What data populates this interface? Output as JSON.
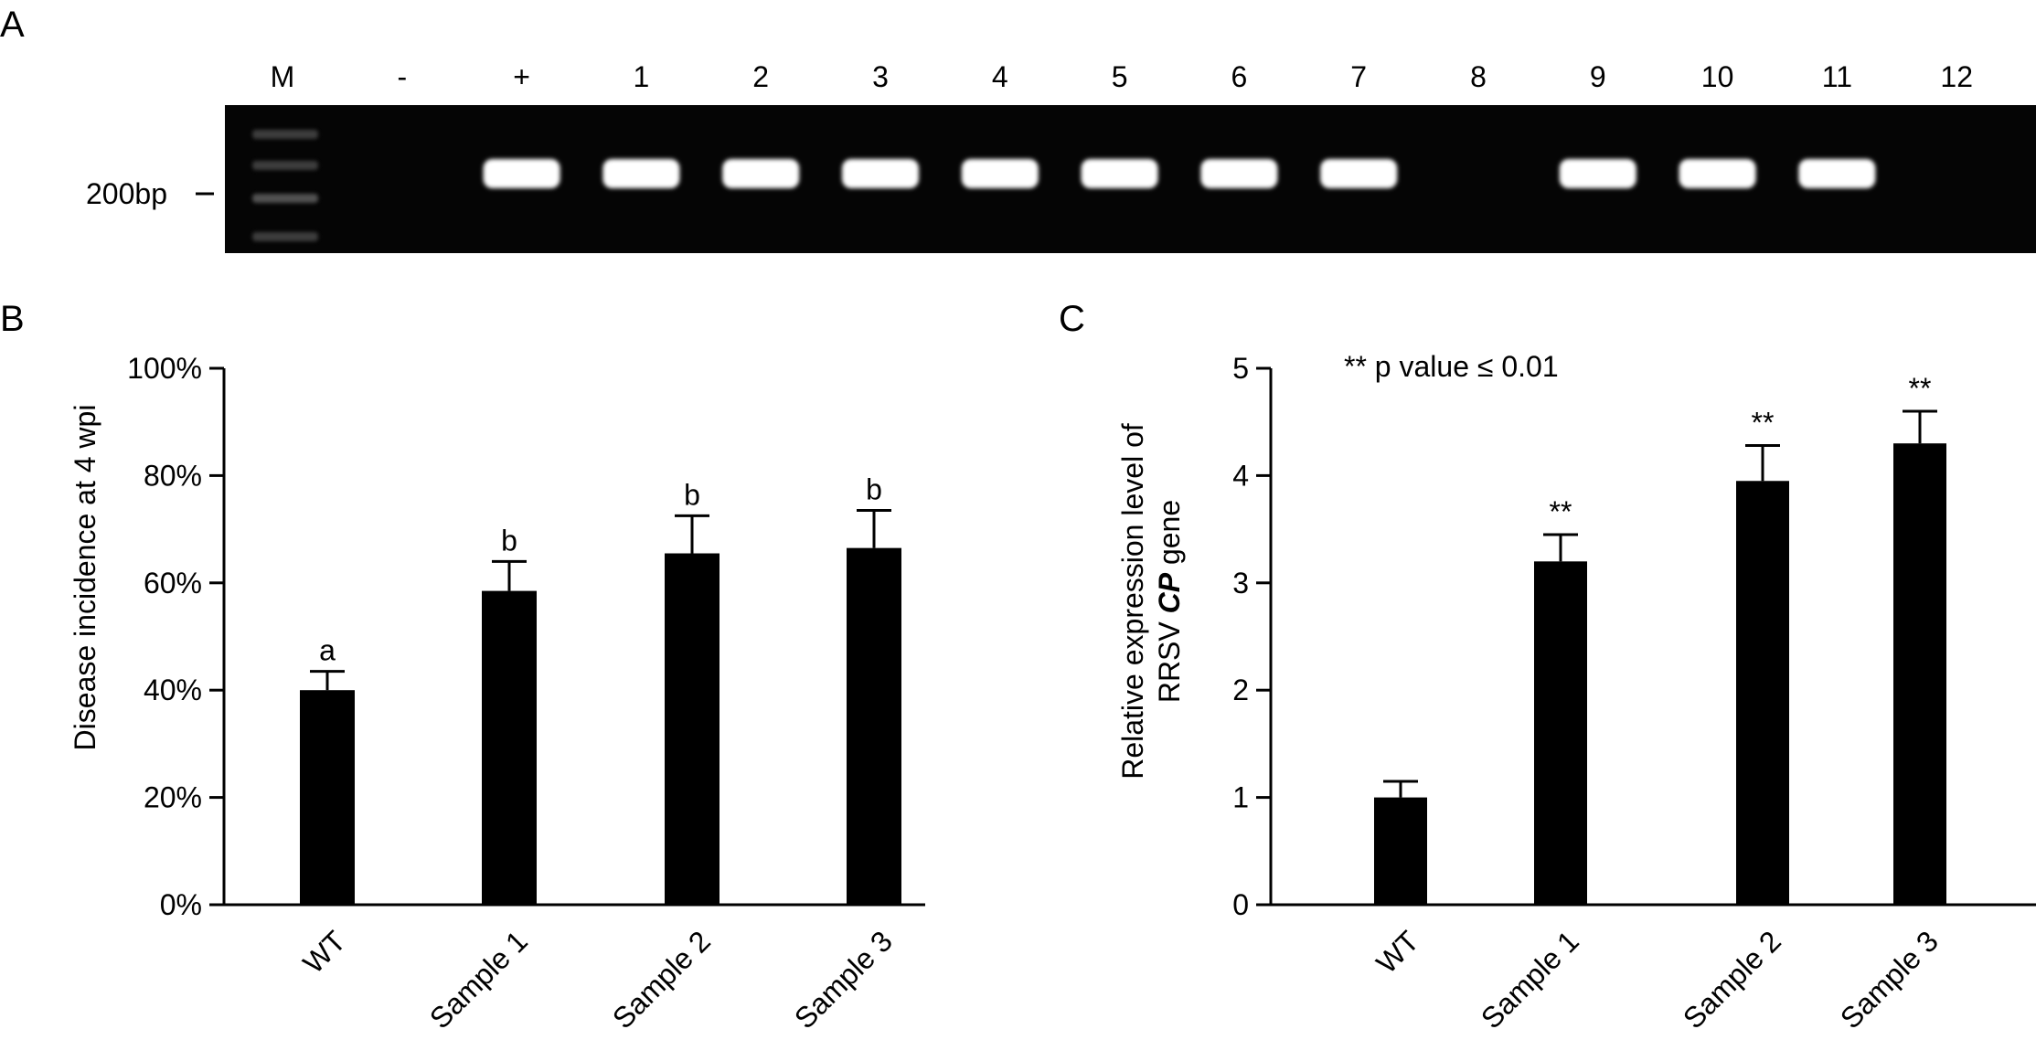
{
  "panels": {
    "a": {
      "letter": "A",
      "lane_labels": [
        "M",
        "-",
        "+",
        "1",
        "2",
        "3",
        "4",
        "5",
        "6",
        "7",
        "8",
        "9",
        "10",
        "11",
        "12"
      ],
      "band_present": [
        false,
        false,
        true,
        true,
        true,
        true,
        true,
        true,
        true,
        true,
        false,
        true,
        true,
        true,
        false
      ],
      "marker_label": "200bp",
      "gel_color": "#050505",
      "band_color": "#ffffff"
    },
    "b": {
      "letter": "B"
    },
    "c": {
      "letter": "C",
      "annotation": "** p value ≤ 0.01"
    }
  },
  "chart_data": [
    {
      "type": "bar",
      "panel": "B",
      "categories": [
        "WT",
        "Sample 1",
        "Sample 2",
        "Sample 3"
      ],
      "values": [
        40,
        58.5,
        65.5,
        66.5
      ],
      "errors": [
        3.5,
        5.5,
        7,
        7
      ],
      "significance": [
        "a",
        "b",
        "b",
        "b"
      ],
      "ylabel": "Disease incidence  at 4 wpi",
      "ylim": [
        0,
        100
      ],
      "yticks": [
        0,
        20,
        40,
        60,
        80,
        100
      ],
      "ytick_labels": [
        "0%",
        "20%",
        "40%",
        "60%",
        "80%",
        "100%"
      ],
      "bar_color": "#000000",
      "grid": false
    },
    {
      "type": "bar",
      "panel": "C",
      "categories": [
        "WT",
        "Sample 1",
        "Sample 2",
        "Sample 3"
      ],
      "values": [
        1.0,
        3.2,
        3.95,
        4.3
      ],
      "errors": [
        0.15,
        0.25,
        0.33,
        0.3
      ],
      "significance": [
        "",
        "**",
        "**",
        "**"
      ],
      "ylabel_line1": "Relative expression level of",
      "ylabel_line2_pre": "RRSV ",
      "ylabel_line2_italic": "CP",
      "ylabel_line2_post": " gene",
      "ylim": [
        0,
        5
      ],
      "yticks": [
        0,
        1,
        2,
        3,
        4,
        5
      ],
      "ytick_labels": [
        "0",
        "1",
        "2",
        "3",
        "4",
        "5"
      ],
      "bar_color": "#000000",
      "grid": false
    }
  ]
}
